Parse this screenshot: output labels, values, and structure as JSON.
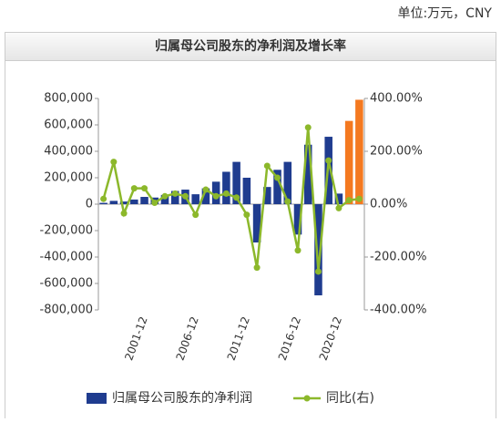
{
  "unit_note": "单位:万元，CNY",
  "chart_data": {
    "type": "bar-line",
    "title": "归属母公司股东的净利润及增长率",
    "categories": [
      null,
      null,
      null,
      null,
      "2001-12",
      null,
      null,
      null,
      null,
      "2006-12",
      null,
      null,
      null,
      null,
      "2011-12",
      null,
      null,
      null,
      null,
      "2016-12",
      null,
      null,
      null,
      "2020-12",
      null,
      null
    ],
    "series": [
      {
        "name": "归属母公司股东的净利润",
        "type": "bar",
        "color": "#1f3c8f",
        "colors": [
          "#1f3c8f",
          "#1f3c8f",
          "#1f3c8f",
          "#1f3c8f",
          "#1f3c8f",
          "#1f3c8f",
          "#1f3c8f",
          "#1f3c8f",
          "#1f3c8f",
          "#1f3c8f",
          "#1f3c8f",
          "#1f3c8f",
          "#1f3c8f",
          "#1f3c8f",
          "#1f3c8f",
          "#1f3c8f",
          "#1f3c8f",
          "#1f3c8f",
          "#1f3c8f",
          "#1f3c8f",
          "#1f3c8f",
          "#1f3c8f",
          "#1f3c8f",
          "#1f3c8f",
          "#f47920",
          "#f47920"
        ],
        "values": [
          10000,
          25000,
          20000,
          35000,
          55000,
          50000,
          70000,
          100000,
          110000,
          75000,
          120000,
          170000,
          245000,
          320000,
          200000,
          -290000,
          130000,
          260000,
          320000,
          -230000,
          450000,
          -690000,
          510000,
          80000,
          630000,
          790000
        ]
      },
      {
        "name": "同比(右)",
        "type": "line",
        "axis": "y2",
        "color": "#8cb82b",
        "values": [
          20,
          160,
          -35,
          60,
          60,
          5,
          30,
          40,
          30,
          -40,
          55,
          30,
          40,
          25,
          -40,
          -240,
          145,
          100,
          10,
          -175,
          290,
          -255,
          165,
          -15,
          15,
          20
        ]
      }
    ],
    "ylim": [
      -800000,
      800000
    ],
    "yticks": [
      {
        "value": -800000,
        "label": "-800,000"
      },
      {
        "value": -600000,
        "label": "-600,000"
      },
      {
        "value": -400000,
        "label": "-400,000"
      },
      {
        "value": -200000,
        "label": "-200,000"
      },
      0,
      {
        "value": 200000,
        "label": "200,000"
      },
      {
        "value": 400000,
        "label": "400,000"
      },
      {
        "value": 600000,
        "label": "600,000"
      },
      {
        "value": 800000,
        "label": "800,000"
      }
    ],
    "y2lim": [
      -400,
      400
    ],
    "y2ticks": [
      {
        "value": -400,
        "label": "-400.00%"
      },
      {
        "value": -200,
        "label": "-200.00%"
      },
      {
        "value": 0,
        "label": "0.00%"
      },
      {
        "value": 200,
        "label": "200.00%"
      },
      {
        "value": 400,
        "label": "400.00%"
      }
    ],
    "legend": "bottom"
  }
}
